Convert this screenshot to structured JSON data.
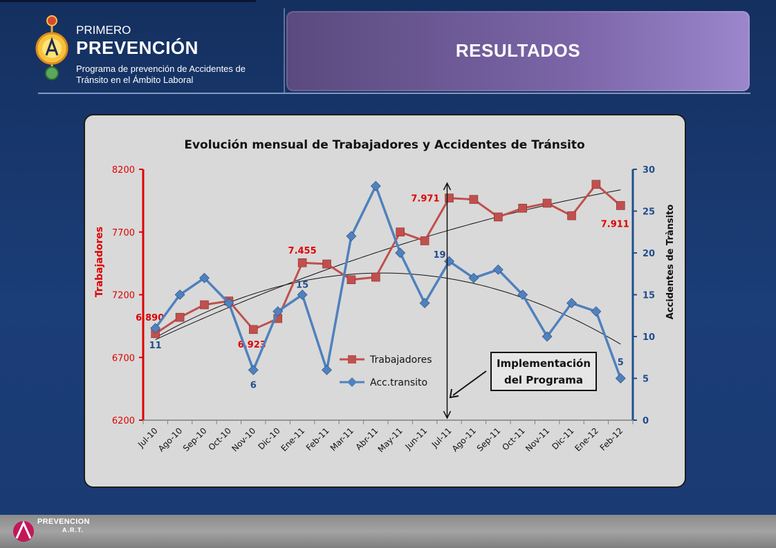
{
  "header": {
    "brand_small": "PRIMERO",
    "brand_big": "PREVENCIÓN",
    "brand_sub": "Programa de prevención de Accidentes de Tránsito en el Ámbito Laboral",
    "slide_title": "RESULTADOS"
  },
  "footer": {
    "logo_text": "PREVENCION",
    "logo_sub": "A.R.T."
  },
  "colors": {
    "trabajadores": "#c0504d",
    "accidentes": "#4f81bd",
    "left_axis": "#e00000",
    "right_axis": "#1f4e8c"
  },
  "annotation": {
    "line1": "Implementación",
    "line2": "del Programa"
  },
  "chart_data": {
    "type": "line",
    "title": "Evolución mensual de Trabajadores y Accidentes de Tránsito",
    "categories": [
      "Jul-10",
      "Ago-10",
      "Sep-10",
      "Oct-10",
      "Nov-10",
      "Dic-10",
      "Ene-11",
      "Feb-11",
      "Mar-11",
      "Abr-11",
      "May-11",
      "Jun-11",
      "Jul-11",
      "Ago-11",
      "Sep-11",
      "Oct-11",
      "Nov-11",
      "Dic-11",
      "Ene-12",
      "Feb-12"
    ],
    "ylabel_left": "Trabajadores",
    "ylabel_right": "Accidentes de Trànsito",
    "ylim_left": [
      6200,
      8200
    ],
    "ylim_right": [
      0,
      30
    ],
    "yticks_left": [
      "6200",
      "6700",
      "7200",
      "7700",
      "8200"
    ],
    "yticks_right": [
      "0",
      "5",
      "10",
      "15",
      "20",
      "25",
      "30"
    ],
    "legend": "center-left",
    "series": [
      {
        "name": "Trabajadores",
        "axis": "left",
        "values": [
          6890,
          7020,
          7120,
          7150,
          6923,
          7010,
          7455,
          7445,
          7320,
          7340,
          7700,
          7630,
          7971,
          7960,
          7820,
          7890,
          7930,
          7830,
          8080,
          7911
        ],
        "labels": [
          {
            "index": 0,
            "text": "6.890"
          },
          {
            "index": 4,
            "text": "6.923"
          },
          {
            "index": 6,
            "text": "7.455"
          },
          {
            "index": 12,
            "text": "7.971"
          },
          {
            "index": 19,
            "text": "7.911"
          }
        ]
      },
      {
        "name": "Acc.transito",
        "axis": "right",
        "values": [
          11,
          15,
          17,
          14,
          6,
          13,
          15,
          6,
          22,
          28,
          20,
          14,
          19,
          17,
          18,
          15,
          10,
          14,
          13,
          5
        ],
        "labels": [
          {
            "index": 0,
            "text": "11"
          },
          {
            "index": 4,
            "text": "6"
          },
          {
            "index": 6,
            "text": "15"
          },
          {
            "index": 12,
            "text": "19"
          },
          {
            "index": 19,
            "text": "5"
          }
        ]
      }
    ]
  }
}
